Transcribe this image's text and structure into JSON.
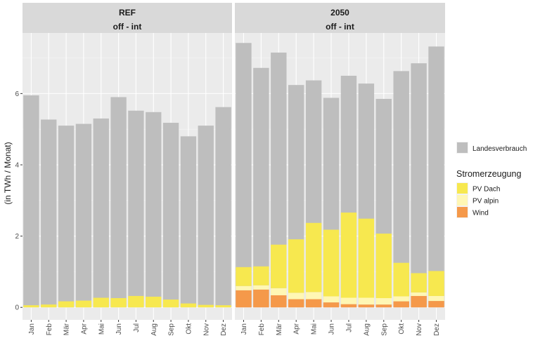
{
  "chart_data": {
    "type": "bar",
    "ylabel": "(in TWh / Monat)",
    "ylim": [
      -0.35,
      7.7
    ],
    "y_ticks": [
      0,
      2,
      4,
      6
    ],
    "categories": [
      "Jan",
      "Feb",
      "Mär",
      "Apr",
      "Mai",
      "Jun",
      "Jul",
      "Aug",
      "Sep",
      "Okt",
      "Nov",
      "Dez"
    ],
    "colors": {
      "Landesverbrauch": "#bebebe",
      "PV Dach": "#f7e84f",
      "PV alpin": "#fff7b4",
      "Wind": "#f5994a"
    },
    "legend": {
      "position": "right",
      "demand_label": "Landesverbrauch",
      "title": "Stromerzeugung",
      "items": [
        "PV Dach",
        "PV alpin",
        "Wind"
      ]
    },
    "panels": [
      {
        "title": "REF",
        "subtitle": "off - int",
        "series": [
          {
            "name": "Landesverbrauch",
            "values": [
              5.95,
              5.27,
              5.1,
              5.15,
              5.3,
              5.9,
              5.52,
              5.48,
              5.18,
              4.8,
              5.1,
              5.62
            ]
          },
          {
            "name": "Wind",
            "values": [
              0,
              0,
              0,
              0,
              0,
              0,
              0,
              0,
              0,
              0,
              0,
              0
            ]
          },
          {
            "name": "PV alpin",
            "values": [
              0,
              0,
              0,
              0,
              0,
              0,
              0,
              0,
              0,
              0,
              0,
              0
            ]
          },
          {
            "name": "PV Dach",
            "values": [
              0.06,
              0.08,
              0.17,
              0.19,
              0.27,
              0.26,
              0.32,
              0.3,
              0.22,
              0.11,
              0.07,
              0.06
            ]
          }
        ]
      },
      {
        "title": "2050",
        "subtitle": "off - int",
        "series": [
          {
            "name": "Landesverbrauch",
            "values": [
              7.42,
              6.72,
              7.15,
              6.24,
              6.37,
              5.88,
              6.5,
              6.28,
              5.85,
              6.63,
              6.85,
              7.32
            ]
          },
          {
            "name": "Wind",
            "values": [
              0.48,
              0.5,
              0.34,
              0.23,
              0.23,
              0.14,
              0.09,
              0.08,
              0.08,
              0.17,
              0.32,
              0.18
            ]
          },
          {
            "name": "PV alpin",
            "values": [
              0.12,
              0.12,
              0.2,
              0.18,
              0.2,
              0.17,
              0.18,
              0.19,
              0.18,
              0.14,
              0.1,
              0.14
            ]
          },
          {
            "name": "PV Dach",
            "values": [
              0.53,
              0.53,
              1.22,
              1.5,
              1.94,
              1.87,
              2.39,
              2.22,
              1.81,
              0.94,
              0.54,
              0.7
            ]
          }
        ]
      }
    ]
  }
}
